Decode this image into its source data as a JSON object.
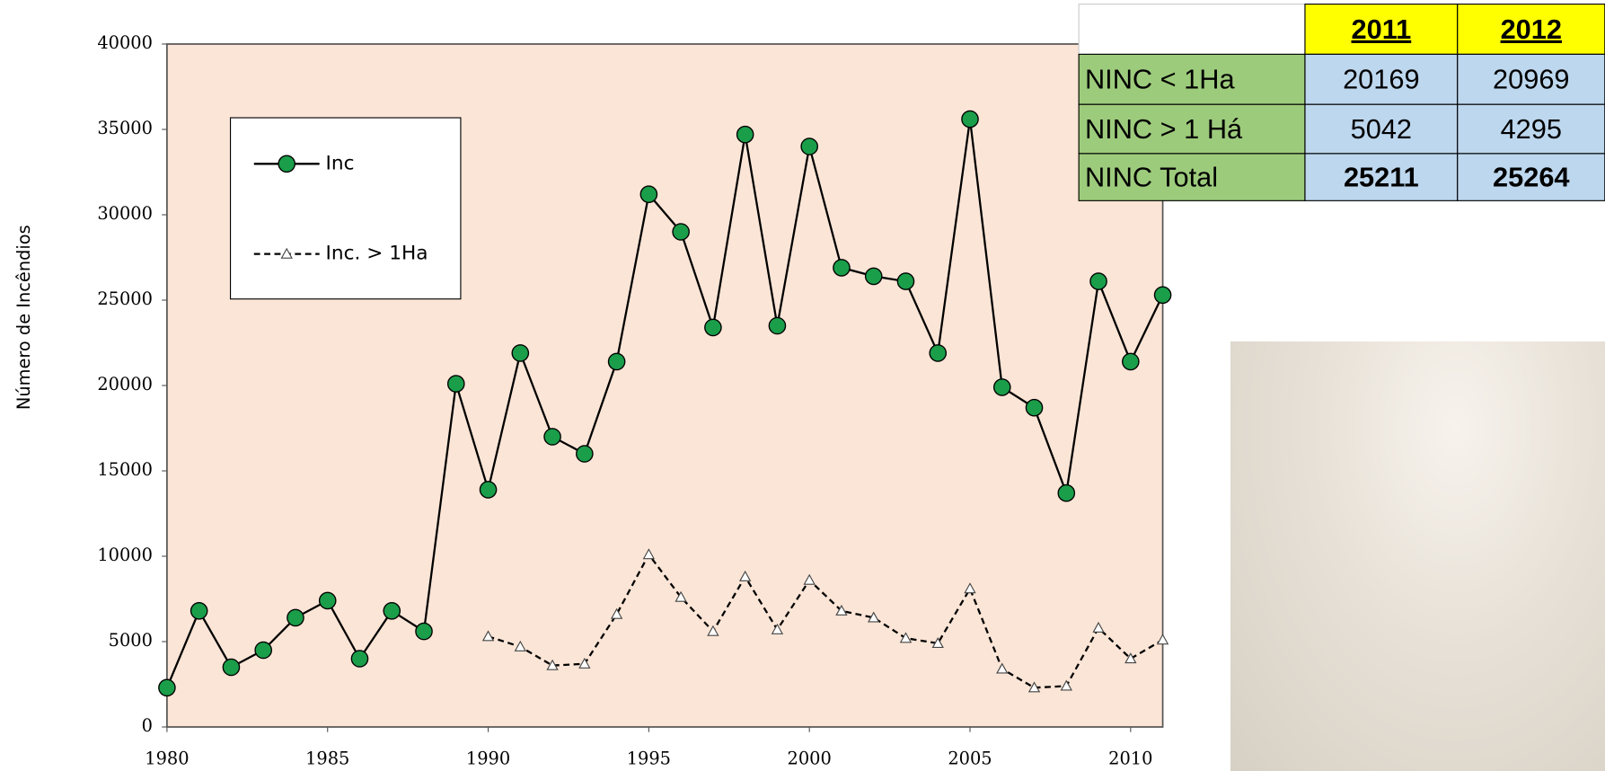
{
  "chart_data": {
    "type": "line",
    "y_label": "Número de Incêndios",
    "x": [
      1980,
      1981,
      1982,
      1983,
      1984,
      1985,
      1986,
      1987,
      1988,
      1989,
      1990,
      1991,
      1992,
      1993,
      1994,
      1995,
      1996,
      1997,
      1998,
      1999,
      2000,
      2001,
      2002,
      2003,
      2004,
      2005,
      2006,
      2007,
      2008,
      2009,
      2010,
      2011
    ],
    "series": [
      {
        "name": "Inc",
        "color": "#1a9e4a",
        "marker": "circle",
        "dash": false,
        "values": [
          2300,
          6800,
          3500,
          4500,
          6400,
          7400,
          4000,
          6800,
          5600,
          20100,
          13900,
          21900,
          17000,
          16000,
          21400,
          31200,
          29000,
          23400,
          34700,
          23500,
          34000,
          26900,
          26400,
          26100,
          21900,
          35600,
          19900,
          18700,
          13700,
          26100,
          21400,
          25300
        ]
      },
      {
        "name": "Inc. > 1Ha",
        "color": "#ffffff",
        "marker": "triangle",
        "dash": true,
        "values": [
          null,
          null,
          null,
          null,
          null,
          null,
          null,
          null,
          null,
          null,
          5300,
          4700,
          3600,
          3700,
          6600,
          10100,
          7600,
          5600,
          8800,
          5700,
          8600,
          6800,
          6400,
          5200,
          4900,
          8100,
          3400,
          2300,
          2400,
          5800,
          4000,
          5100
        ]
      }
    ],
    "xlim": [
      1980,
      2011
    ],
    "xticks": [
      1980,
      1985,
      1990,
      1995,
      2000,
      2005,
      2010
    ],
    "ylim": [
      0,
      40000
    ],
    "yticks": [
      0,
      5000,
      10000,
      15000,
      20000,
      25000,
      30000,
      35000,
      40000
    ],
    "grid": false,
    "plot_background": "#fbe5d6"
  },
  "table": {
    "columns": [
      "2011",
      "2012"
    ],
    "rows": [
      {
        "label": "NINC < 1Ha",
        "values": [
          "20169",
          "20969"
        ]
      },
      {
        "label": "NINC > 1 Há",
        "values": [
          "5042",
          "4295"
        ]
      },
      {
        "label": "NINC Total",
        "values": [
          "25211",
          "25264"
        ]
      }
    ]
  }
}
